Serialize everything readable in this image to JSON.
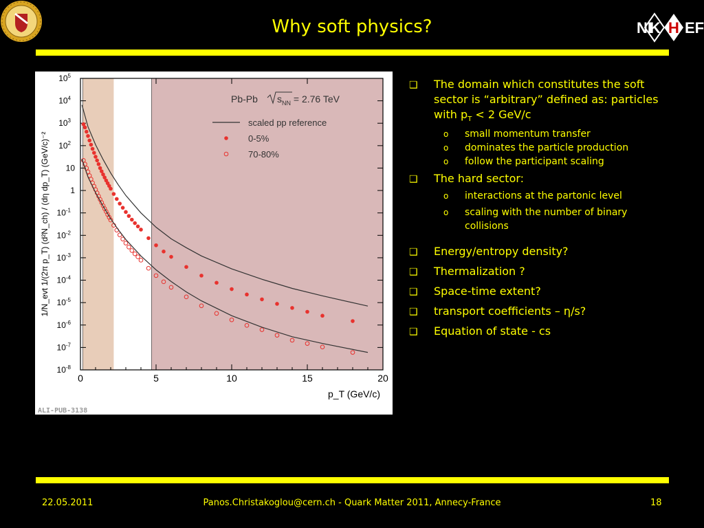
{
  "slide": {
    "title": "Why soft physics?",
    "logo_right_text": "NIKHEF",
    "footer": {
      "date": "22.05.2011",
      "center": "Panos.Christakoglou@cern.ch - Quark Matter 2011, Annecy-France",
      "page": "18"
    },
    "bullets": [
      {
        "text_a": "The domain which constitutes the soft sector is “arbitrary” defined as: particles with p",
        "sub": "T",
        "text_b": " < 2 GeV/c",
        "items": [
          "small momentum transfer",
          "dominates the particle production",
          "follow the participant scaling"
        ]
      },
      {
        "text": "The hard sector:",
        "items": [
          "interactions at the partonic level",
          "scaling with the number of binary collisions"
        ]
      },
      {
        "text": "Energy/entropy density?"
      },
      {
        "text": "Thermalization ?"
      },
      {
        "text": "Space-time extent?"
      },
      {
        "text": "transport coefficients – η/s?"
      },
      {
        "text": "Equation of state - cs"
      }
    ]
  },
  "colors": {
    "background": "#000000",
    "text": "#ffff00",
    "soft_band": "#e8cdb9",
    "hard_band": "#d9b8b8",
    "data": "#e8322e",
    "reference": "#333333"
  },
  "chart_data": {
    "type": "scatter",
    "title": "Pb-Pb √s_NN = 2.76 TeV",
    "xlabel": "p_T (GeV/c)",
    "ylabel": "1/N_evt 1/(2π p_T) (d²N_ch) / (dη dp_T) (GeV/c)⁻²",
    "xlim": [
      0,
      20
    ],
    "ylim": [
      1e-08,
      100000.0
    ],
    "yscale": "log",
    "xticks": [
      0,
      5,
      10,
      15,
      20
    ],
    "yticks": [
      {
        "v": 100000.0,
        "label": "10",
        "exp": "5"
      },
      {
        "v": 10000.0,
        "label": "10",
        "exp": "4"
      },
      {
        "v": 1000.0,
        "label": "10",
        "exp": "3"
      },
      {
        "v": 100.0,
        "label": "10",
        "exp": "2"
      },
      {
        "v": 10,
        "label": "10",
        "exp": ""
      },
      {
        "v": 1,
        "label": "1",
        "exp": ""
      },
      {
        "v": 0.1,
        "label": "10",
        "exp": "-1"
      },
      {
        "v": 0.01,
        "label": "10",
        "exp": "-2"
      },
      {
        "v": 0.001,
        "label": "10",
        "exp": "-3"
      },
      {
        "v": 0.0001,
        "label": "10",
        "exp": "-4"
      },
      {
        "v": 1e-05,
        "label": "10",
        "exp": "-5"
      },
      {
        "v": 1e-06,
        "label": "10",
        "exp": "-6"
      },
      {
        "v": 1e-07,
        "label": "10",
        "exp": "-7"
      },
      {
        "v": 1e-08,
        "label": "10",
        "exp": "-8"
      }
    ],
    "bands": [
      {
        "name": "soft",
        "x0": 0.15,
        "x1": 2.2
      },
      {
        "name": "hard",
        "x0": 4.7,
        "x1": 20
      }
    ],
    "legend": {
      "placement": "top-right",
      "header": "Pb-Pb",
      "energy_prefix": "s",
      "energy_sub": "NN",
      "energy_suffix": " = 2.76 TeV",
      "entries": [
        "scaled pp reference",
        "0-5%",
        "70-80%"
      ]
    },
    "watermark": "ALI-PUB-3138",
    "series": [
      {
        "name": "0-5%",
        "marker": "filled",
        "x": [
          0.2,
          0.3,
          0.4,
          0.5,
          0.6,
          0.7,
          0.8,
          0.9,
          1.0,
          1.1,
          1.2,
          1.3,
          1.4,
          1.5,
          1.6,
          1.7,
          1.8,
          1.9,
          2.0,
          2.2,
          2.4,
          2.6,
          2.8,
          3.0,
          3.2,
          3.4,
          3.6,
          3.8,
          4.0,
          4.5,
          5.0,
          5.5,
          6.0,
          7.0,
          8.0,
          9.0,
          10.0,
          11.0,
          12.0,
          13.0,
          14.0,
          15.0,
          16.0,
          18.0
        ],
        "y": [
          900,
          650,
          420,
          270,
          170,
          110,
          72,
          48,
          32,
          22,
          15,
          10,
          7.2,
          5.2,
          3.8,
          2.8,
          2.1,
          1.6,
          1.2,
          0.7,
          0.42,
          0.26,
          0.17,
          0.11,
          0.073,
          0.05,
          0.035,
          0.025,
          0.018,
          0.0075,
          0.0036,
          0.0019,
          0.0011,
          0.00039,
          0.00016,
          7.7e-05,
          4e-05,
          2.3e-05,
          1.4e-05,
          8.8e-06,
          5.8e-06,
          3.9e-06,
          2.6e-06,
          1.5e-06
        ]
      },
      {
        "name": "70-80%",
        "marker": "open",
        "x": [
          0.2,
          0.3,
          0.4,
          0.5,
          0.6,
          0.7,
          0.8,
          0.9,
          1.0,
          1.1,
          1.2,
          1.3,
          1.4,
          1.5,
          1.6,
          1.7,
          1.8,
          1.9,
          2.0,
          2.2,
          2.4,
          2.6,
          2.8,
          3.0,
          3.2,
          3.4,
          3.6,
          3.8,
          4.0,
          4.5,
          5.0,
          5.5,
          6.0,
          7.0,
          8.0,
          9.0,
          10.0,
          11.0,
          12.0,
          13.0,
          14.0,
          15.0,
          16.0,
          18.0
        ],
        "y": [
          22,
          15,
          10,
          6.8,
          4.6,
          3.2,
          2.2,
          1.55,
          1.1,
          0.78,
          0.56,
          0.4,
          0.29,
          0.21,
          0.155,
          0.115,
          0.085,
          0.064,
          0.048,
          0.028,
          0.017,
          0.0105,
          0.0068,
          0.0045,
          0.003,
          0.0021,
          0.0015,
          0.0011,
          0.00078,
          0.00034,
          0.00016,
          8.5e-05,
          4.8e-05,
          1.8e-05,
          7.2e-06,
          3.3e-06,
          1.7e-06,
          9.6e-07,
          6.2e-07,
          3.5e-07,
          2.1e-07,
          1.5e-07,
          1.05e-07,
          6e-08
        ]
      },
      {
        "name": "scaled pp reference",
        "marker": "line",
        "x": [
          0.1,
          0.5,
          1,
          1.5,
          2,
          2.5,
          3,
          4,
          5,
          6,
          7,
          8,
          10,
          12,
          14,
          16,
          19
        ],
        "y": [
          6500,
          700,
          110,
          24,
          6.0,
          1.8,
          0.6,
          0.1,
          0.023,
          0.007,
          0.0028,
          0.0012,
          0.00032,
          0.00011,
          4.3e-05,
          2e-05,
          7e-06
        ]
      },
      {
        "name": "scaled pp reference (peripheral)",
        "marker": "line",
        "x": [
          0.1,
          0.5,
          1,
          1.5,
          2,
          2.5,
          3,
          4,
          5,
          6,
          7,
          8,
          10,
          12,
          14,
          16,
          19
        ],
        "y": [
          25,
          4.0,
          0.8,
          0.2,
          0.055,
          0.018,
          0.0065,
          0.0012,
          0.00029,
          8.7e-05,
          3e-05,
          1.2e-05,
          2.6e-06,
          8e-07,
          3e-07,
          1.5e-07,
          6e-08
        ]
      }
    ]
  }
}
